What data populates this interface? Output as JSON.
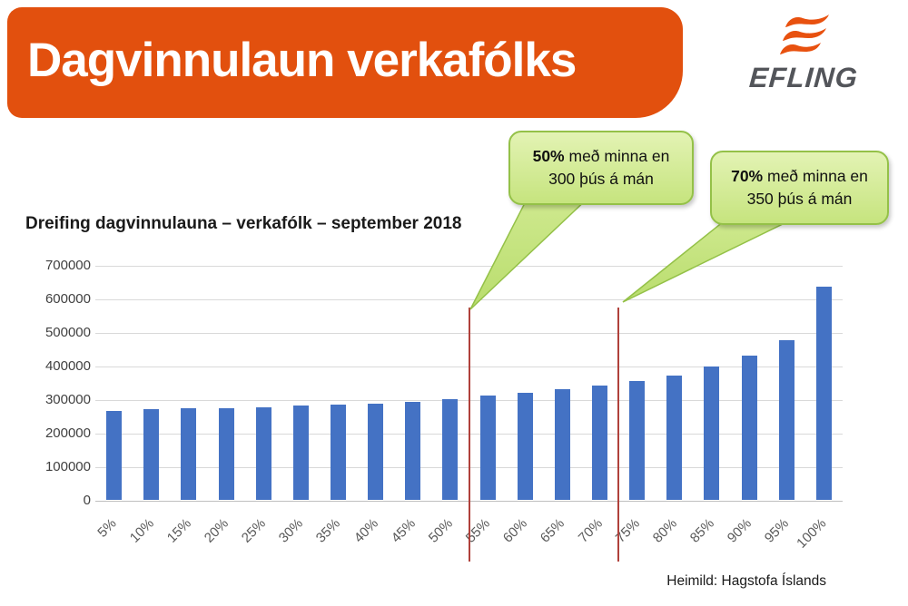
{
  "header": {
    "title": "Dagvinnulaun verkafólks",
    "banner_color": "#E2500E",
    "logo": {
      "brand": "EFLING",
      "icon": "efling-flag-icon",
      "icon_color": "#E8510F",
      "text_color": "#53555A"
    }
  },
  "callouts": [
    {
      "bold": "50%",
      "line1_rest": " með minna en",
      "line2": "300 þús á mán"
    },
    {
      "bold": "70%",
      "line1_rest": " með minna en",
      "line2": "350 þús á mán"
    }
  ],
  "source": "Heimild: Hagstofa Íslands",
  "chart_data": {
    "type": "bar",
    "title": "Dreifing dagvinnulauna – verkafólk – september 2018",
    "categories": [
      "5%",
      "10%",
      "15%",
      "20%",
      "25%",
      "30%",
      "35%",
      "40%",
      "45%",
      "50%",
      "55%",
      "60%",
      "65%",
      "70%",
      "75%",
      "80%",
      "85%",
      "90%",
      "95%",
      "100%"
    ],
    "values": [
      266000,
      271000,
      272000,
      274000,
      275000,
      281000,
      284000,
      287000,
      292000,
      299000,
      310000,
      320000,
      329000,
      340000,
      353000,
      371000,
      397000,
      430000,
      477000,
      635000
    ],
    "xlabel": "",
    "ylabel": "",
    "ylim": [
      0,
      700000
    ],
    "ytick_step": 100000,
    "grid": true,
    "legend": "none",
    "bar_color": "#4472C4",
    "gridline_color": "#D9D9D9",
    "marker_color": "#B0413B",
    "marker_lines": [
      {
        "after_category": "50%"
      },
      {
        "after_category": "70%"
      }
    ]
  }
}
